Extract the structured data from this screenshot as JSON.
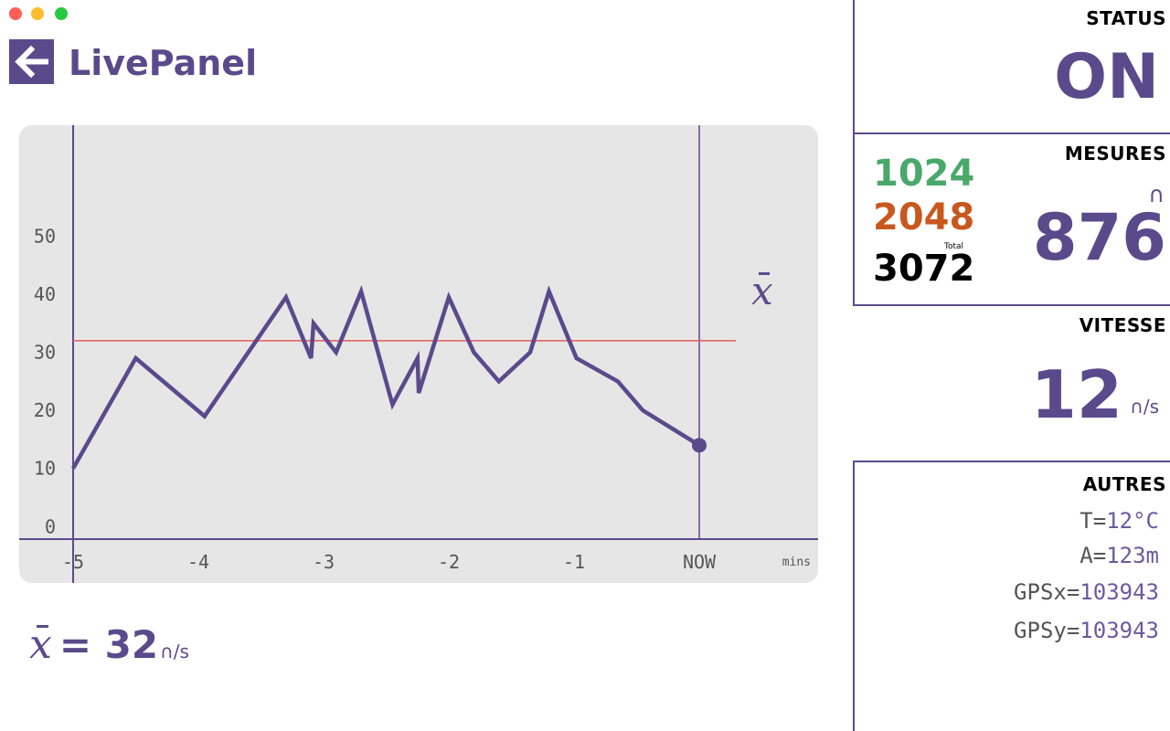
{
  "window": {
    "controls": [
      {
        "name": "close",
        "color": "#ff5f57"
      },
      {
        "name": "minimize",
        "color": "#febc2e"
      },
      {
        "name": "zoom",
        "color": "#28c840"
      }
    ]
  },
  "header": {
    "title": "LivePanel",
    "back_icon": "arrow-left-icon"
  },
  "mean_label": {
    "value": "32",
    "unit": "∩/s"
  },
  "chart_data": {
    "type": "line",
    "x_label_unit": "mins",
    "x_ticks": [
      {
        "x": -5,
        "label": "-5"
      },
      {
        "x": -4,
        "label": "-4"
      },
      {
        "x": -3,
        "label": "-3"
      },
      {
        "x": -2,
        "label": "-2"
      },
      {
        "x": -1,
        "label": "-1"
      },
      {
        "x": 0,
        "label": "NOW"
      }
    ],
    "y_ticks": [
      0,
      10,
      20,
      30,
      40,
      50
    ],
    "xlim": [
      -5,
      0
    ],
    "ylim": [
      -2,
      60
    ],
    "mean": 32,
    "series": [
      {
        "color": "#5b4a8b",
        "x": [
          -5,
          -4.5,
          -3.95,
          -3.3,
          -3.1,
          -3.08,
          -2.9,
          -2.7,
          -2.45,
          -2.25,
          -2.24,
          -2.0,
          -1.8,
          -1.6,
          -1.35,
          -1.2,
          -0.98,
          -0.65,
          -0.45,
          0
        ],
        "y": [
          10,
          29,
          19,
          39.5,
          29,
          35,
          30,
          40.5,
          21,
          29,
          23,
          39.5,
          30,
          25,
          30,
          40.5,
          29,
          25,
          20,
          14
        ]
      }
    ],
    "colors": {
      "mean_line": "#e85a5a",
      "axis": "#5b4a8b",
      "background": "#e6e6e6"
    }
  },
  "sidebar": {
    "status": {
      "label": "STATUS",
      "value": "ON"
    },
    "mesures": {
      "label": "MESURES",
      "values": [
        "1024",
        "2048",
        "3072"
      ],
      "total_label": "Total",
      "unit": "∩",
      "big_value": "876"
    },
    "vitesse": {
      "label": "VITESSE",
      "value": "12",
      "unit": "∩/s"
    },
    "autres": {
      "label": "AUTRES",
      "items": [
        {
          "key": "T=",
          "value": "12°C"
        },
        {
          "key": "A=",
          "value": "123m"
        },
        {
          "key": "GPSx=",
          "value": "103943"
        },
        {
          "key": "GPSy=",
          "value": "103943"
        }
      ]
    }
  }
}
